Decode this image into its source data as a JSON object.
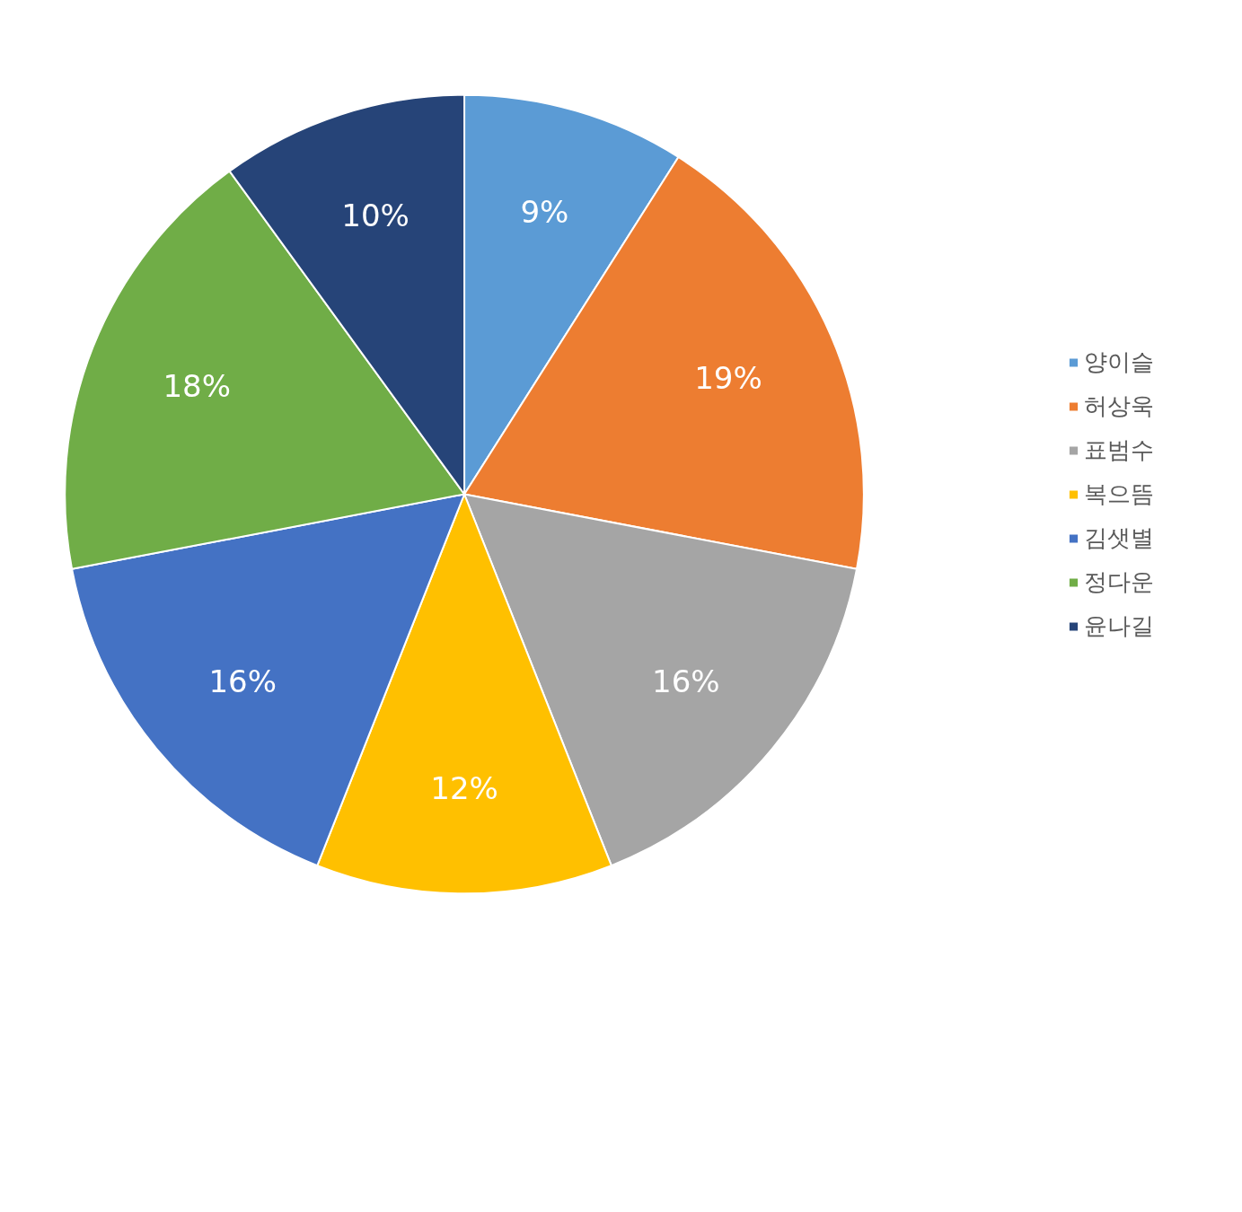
{
  "chart_data": {
    "type": "pie",
    "categories": [
      "양이슬",
      "허상욱",
      "표범수",
      "복으뜸",
      "김샛별",
      "정다운",
      "윤나길"
    ],
    "values": [
      9,
      19,
      16,
      12,
      16,
      18,
      10
    ],
    "colors": [
      "#5b9bd5",
      "#ed7d31",
      "#a5a5a5",
      "#ffc000",
      "#4472c4",
      "#70ad47",
      "#264478"
    ],
    "value_labels": [
      "9%",
      "19%",
      "16%",
      "12%",
      "16%",
      "18%",
      "10%"
    ],
    "legend": "right"
  }
}
